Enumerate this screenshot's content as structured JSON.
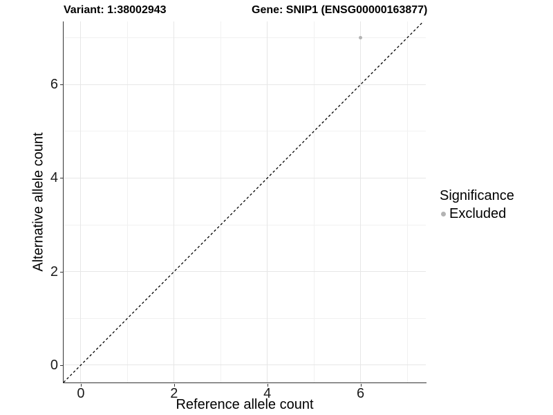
{
  "titles": {
    "variant": "Variant: 1:38002943",
    "gene": "Gene: SNIP1 (ENSG00000163877)"
  },
  "axes": {
    "x": {
      "label": "Reference allele count"
    },
    "y": {
      "label": "Alternative allele count"
    }
  },
  "legend": {
    "title": "Significance",
    "items": [
      {
        "label": "Excluded",
        "color": "#b3b3b3"
      }
    ]
  },
  "chart_data": {
    "type": "scatter",
    "title": "Variant: 1:38002943    Gene: SNIP1 (ENSG00000163877)",
    "xlabel": "Reference allele count",
    "ylabel": "Alternative allele count",
    "xlim": [
      -0.37,
      7.4
    ],
    "ylim": [
      -0.373,
      7.35
    ],
    "x_ticks": [
      0,
      2,
      4,
      6
    ],
    "y_ticks": [
      0,
      2,
      4,
      6
    ],
    "x_minor": [
      1,
      3,
      5,
      7
    ],
    "y_minor": [
      1,
      3,
      5,
      7
    ],
    "grid": "major+minor",
    "legend_position": "right",
    "series": [
      {
        "name": "Excluded",
        "color": "#b3b3b3",
        "points": [
          {
            "x": 6,
            "y": 7
          }
        ]
      }
    ],
    "reference_line": {
      "equation": "y = x",
      "slope": 1,
      "intercept": 0,
      "style": "dashed",
      "color": "#000000"
    }
  },
  "colors": {
    "background": "#ffffff",
    "grid_major": "#e6e6e6",
    "grid_minor": "#f1f1f1",
    "axis_line": "#333333",
    "tick_text": "#1a1a1a",
    "point": "#b3b3b3"
  }
}
